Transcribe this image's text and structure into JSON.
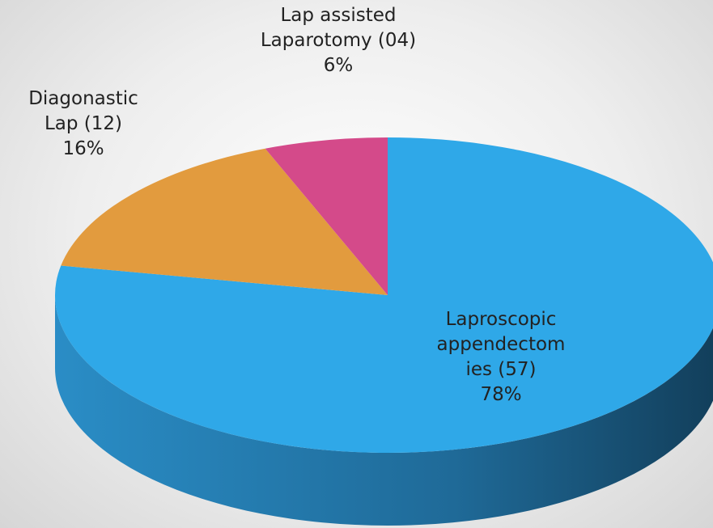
{
  "chart_data": {
    "type": "pie",
    "categories": [
      "Laproscopic appendectomies (57)",
      "Diagonastic Lap (12)",
      "Lap assisted Laparotomy (04)"
    ],
    "values": [
      78,
      16,
      6
    ],
    "value_labels": [
      "78%",
      "16%",
      "6%"
    ],
    "colors": [
      "#2fa8e8",
      "#e29b3e",
      "#d44a8a"
    ],
    "start_angle": 0,
    "direction": "clockwise",
    "three_d": true
  }
}
